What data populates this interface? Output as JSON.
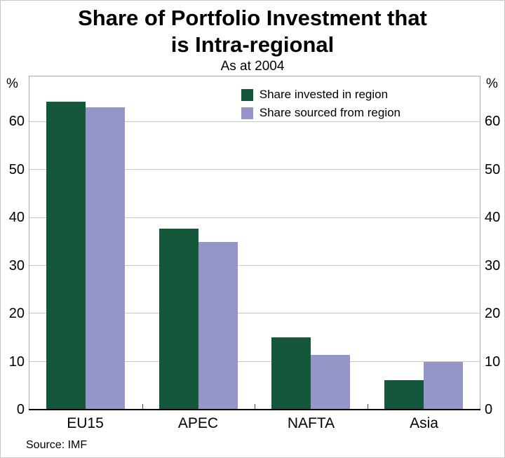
{
  "title_lines": [
    "Share of Portfolio Investment that",
    "is Intra-regional"
  ],
  "subtitle": "As at 2004",
  "axis_unit": "%",
  "source": "Source: IMF",
  "colors": {
    "invested": "#14573A",
    "sourced": "#9496C8",
    "gridline": "#C9C9C9"
  },
  "chart_data": {
    "type": "bar",
    "title": "Share of Portfolio Investment that is Intra-regional",
    "subtitle": "As at 2004",
    "categories": [
      "EU15",
      "APEC",
      "NAFTA",
      "Asia"
    ],
    "series": [
      {
        "name": "Share invested in region",
        "color": "#14573A",
        "values": [
          64.3,
          37.8,
          15.1,
          6.2
        ]
      },
      {
        "name": "Share sourced from region",
        "color": "#9496C8",
        "values": [
          63.0,
          35.0,
          11.4,
          9.9
        ]
      }
    ],
    "xlabel": "",
    "ylabel": "%",
    "ylim": [
      0,
      69.5
    ],
    "yticks": [
      0,
      10,
      20,
      30,
      40,
      50,
      60
    ],
    "grid": true,
    "legend_position": "top-right-inside",
    "source": "Source: IMF"
  }
}
